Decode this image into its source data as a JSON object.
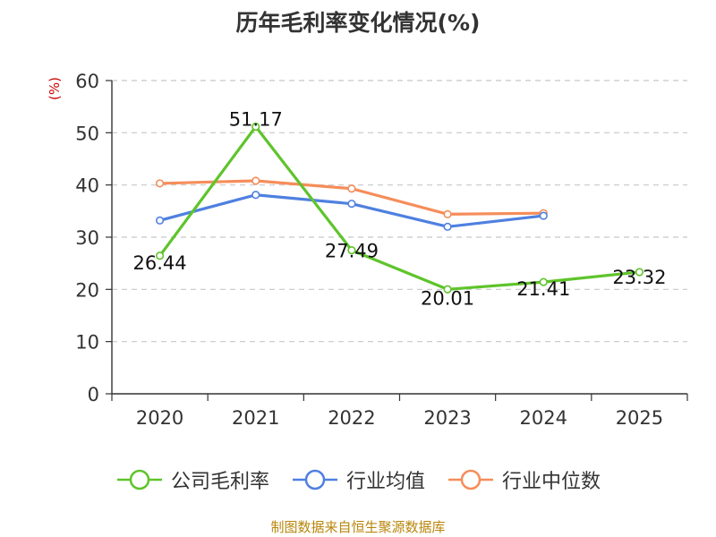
{
  "chart_data": {
    "type": "line",
    "title": "历年毛利率变化情况(%)",
    "ylabel": "(%)",
    "xlabel": "",
    "categories": [
      "2020",
      "2021",
      "2022",
      "2023",
      "2024",
      "2025"
    ],
    "ylim": [
      0,
      60
    ],
    "yticks": [
      0,
      10,
      20,
      30,
      40,
      50,
      60
    ],
    "grid": true,
    "legend_position": "bottom",
    "series": [
      {
        "name": "公司毛利率",
        "color": "#5ec42b",
        "values": [
          26.44,
          51.17,
          27.49,
          20.01,
          21.41,
          23.32
        ],
        "labels": [
          "26.44",
          "51.17",
          "27.49",
          "20.01",
          "21.41",
          "23.32"
        ]
      },
      {
        "name": "行业均值",
        "color": "#4f80e0",
        "values": [
          33.2,
          38.1,
          36.4,
          32.0,
          34.1,
          null
        ]
      },
      {
        "name": "行业中位数",
        "color": "#f58d5a",
        "values": [
          40.3,
          40.8,
          39.3,
          34.4,
          34.6,
          null
        ]
      }
    ]
  },
  "source": "制图数据来自恒生聚源数据库"
}
